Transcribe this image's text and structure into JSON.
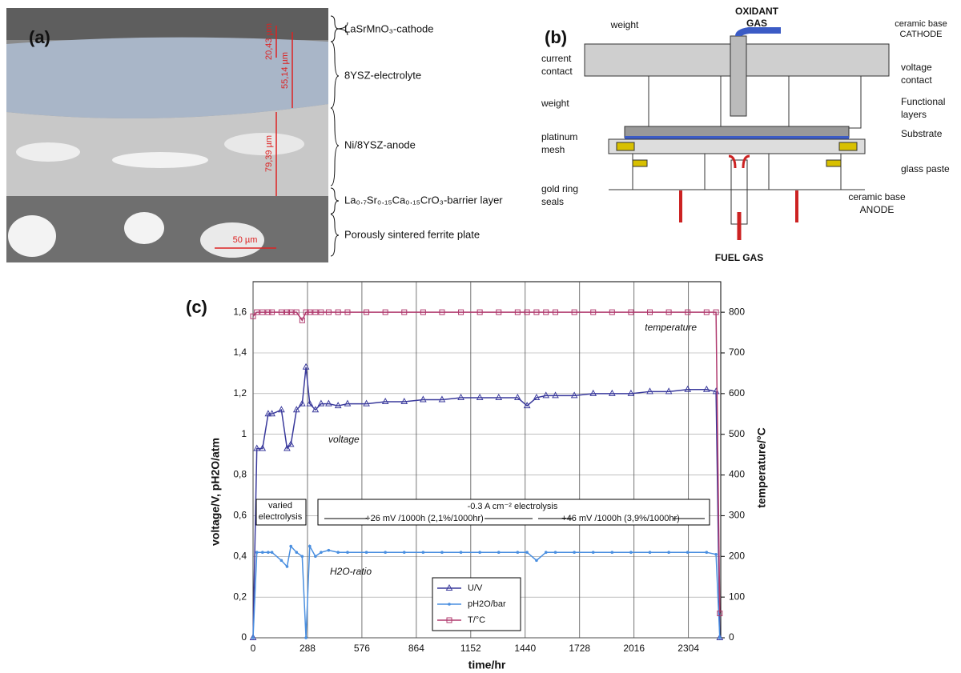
{
  "panel_a": {
    "label": "(a)",
    "layers": [
      "LaSrMnO₃-cathode",
      "8YSZ-electrolyte",
      "Ni/8YSZ-anode",
      "La₀.₇Sr₀.₁₅Ca₀.₁₅CrO₃-barrier layer",
      "Porously sintered ferrite plate"
    ],
    "measurements": [
      "20,43 µm",
      "55,14 µm",
      "79,39 µm",
      "50 µm"
    ]
  },
  "panel_b": {
    "label": "(b)",
    "labels": {
      "weight_top": "weight",
      "oxidant": [
        "OXIDANT",
        "GAS"
      ],
      "cathode": [
        "ceramic base",
        "CATHODE"
      ],
      "current_contact": [
        "current",
        "contact"
      ],
      "voltage_contact": [
        "voltage",
        "contact"
      ],
      "weight_left": "weight",
      "functional": [
        "Functional",
        "layers"
      ],
      "substrate": "Substrate",
      "platinum": [
        "platinum",
        "mesh"
      ],
      "glass": "glass paste",
      "gold": [
        "gold ring",
        "seals"
      ],
      "anode": [
        "ceramic base",
        "ANODE"
      ],
      "fuel": "FUEL GAS"
    }
  },
  "chart_data": {
    "type": "line",
    "panel_label": "(c)",
    "xlabel": "time/hr",
    "ylabel": "voltage/V, pH2O/atm",
    "y2label": "temperature/°C",
    "x": [
      0,
      20,
      50,
      80,
      100,
      150,
      180,
      200,
      230,
      260,
      280,
      300,
      330,
      360,
      400,
      450,
      500,
      600,
      700,
      800,
      900,
      1000,
      1100,
      1200,
      1300,
      1400,
      1450,
      1500,
      1550,
      1600,
      1700,
      1800,
      1900,
      2000,
      2100,
      2200,
      2300,
      2400,
      2450,
      2470
    ],
    "xlim": [
      0,
      2475
    ],
    "xticks": [
      0,
      288,
      576,
      864,
      1152,
      1440,
      1728,
      2016,
      2304
    ],
    "ylim": [
      0,
      1.75
    ],
    "yticks": [
      0,
      {
        "value": 0.2,
        "label": "0,2"
      },
      {
        "value": 0.4,
        "label": "0,4"
      },
      {
        "value": 0.6,
        "label": "0,6"
      },
      {
        "value": 0.8,
        "label": "0,8"
      },
      1,
      {
        "value": 1.2,
        "label": "1,2"
      },
      {
        "value": 1.4,
        "label": "1,4"
      },
      {
        "value": 1.6,
        "label": "1,6"
      }
    ],
    "y2lim": [
      0,
      875
    ],
    "y2ticks": [
      0,
      100,
      200,
      300,
      400,
      500,
      600,
      700,
      800
    ],
    "grid": true,
    "series": [
      {
        "name": "U/V",
        "color": "#3a3a9c",
        "marker": "triangle",
        "values": [
          0,
          0.93,
          0.93,
          1.1,
          1.1,
          1.12,
          0.93,
          0.95,
          1.12,
          1.15,
          1.33,
          1.15,
          1.12,
          1.15,
          1.15,
          1.14,
          1.15,
          1.15,
          1.16,
          1.16,
          1.17,
          1.17,
          1.18,
          1.18,
          1.18,
          1.18,
          1.14,
          1.18,
          1.19,
          1.19,
          1.19,
          1.2,
          1.2,
          1.2,
          1.21,
          1.21,
          1.22,
          1.22,
          1.21,
          0
        ]
      },
      {
        "name": "pH2O/bar",
        "color": "#4a8fe0",
        "marker": "dot",
        "values": [
          0,
          0.42,
          0.42,
          0.42,
          0.42,
          0.38,
          0.35,
          0.45,
          0.42,
          0.4,
          0,
          0.45,
          0.4,
          0.42,
          0.43,
          0.42,
          0.42,
          0.42,
          0.42,
          0.42,
          0.42,
          0.42,
          0.42,
          0.42,
          0.42,
          0.42,
          0.42,
          0.38,
          0.42,
          0.42,
          0.42,
          0.42,
          0.42,
          0.42,
          0.42,
          0.42,
          0.42,
          0.42,
          0.41,
          0
        ]
      },
      {
        "name": "T/°C",
        "color": "#b03a6e",
        "marker": "square",
        "axis": "y2",
        "values": [
          790,
          800,
          800,
          800,
          800,
          800,
          800,
          800,
          800,
          780,
          800,
          800,
          800,
          800,
          800,
          800,
          800,
          800,
          800,
          800,
          800,
          800,
          800,
          800,
          800,
          800,
          800,
          800,
          800,
          800,
          800,
          800,
          800,
          800,
          800,
          800,
          800,
          800,
          800,
          60
        ]
      }
    ],
    "annotations": [
      "temperature",
      "voltage",
      "H2O-ratio",
      "varied",
      "electrolysis",
      "-0.3 A cm⁻² electrolysis",
      "+26 mV /1000h (2,1%/1000hr)",
      "+46 mV /1000h (3,9%/1000hr)"
    ],
    "legend": "bottom-center"
  }
}
